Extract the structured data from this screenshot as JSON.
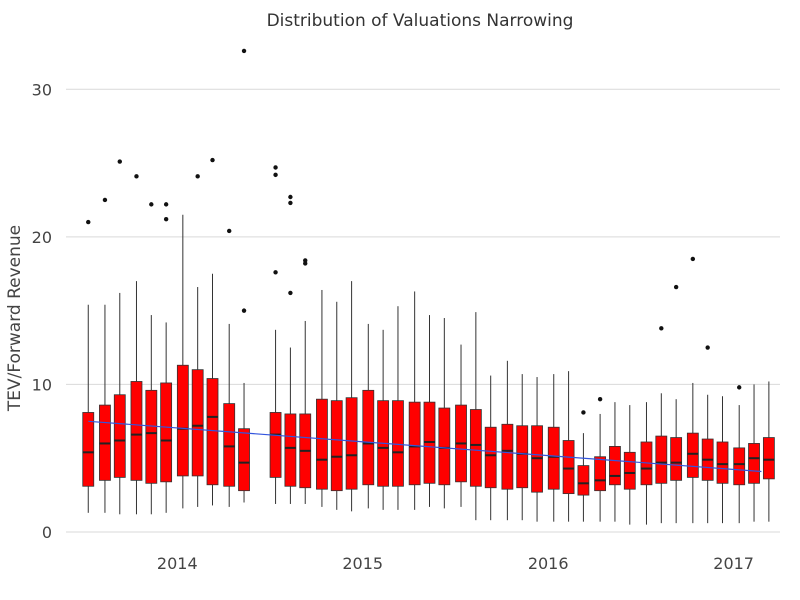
{
  "chart_data": {
    "type": "boxplot",
    "title": "Distribution of Valuations Narrowing",
    "xlabel": "",
    "ylabel": "TEV/Forward Revenue",
    "ylim": [
      0,
      33
    ],
    "yticks": [
      0,
      10,
      20,
      30
    ],
    "xlim": [
      2013.4,
      2017.25
    ],
    "xticks": [
      2014,
      2015,
      2016,
      2017
    ],
    "grid": "horizontal",
    "colors": {
      "box_fill": "#ff0000",
      "box_stroke": "#333333",
      "trend": "#3355dd",
      "grid": "#d9d9d9",
      "text": "#444444"
    },
    "trend_line": {
      "start": {
        "x": 2013.52,
        "y": 7.5
      },
      "end": {
        "x": 2017.15,
        "y": 4.1
      }
    },
    "boxes": [
      {
        "x": 2013.52,
        "min": 1.3,
        "q1": 3.1,
        "median": 5.4,
        "q3": 8.1,
        "max": 15.4,
        "outliers": [
          21.0
        ]
      },
      {
        "x": 2013.61,
        "min": 1.3,
        "q1": 3.5,
        "median": 6.0,
        "q3": 8.6,
        "max": 15.4,
        "outliers": [
          22.5
        ]
      },
      {
        "x": 2013.69,
        "min": 1.2,
        "q1": 3.7,
        "median": 6.2,
        "q3": 9.3,
        "max": 16.2,
        "outliers": [
          25.1
        ]
      },
      {
        "x": 2013.78,
        "min": 1.2,
        "q1": 3.5,
        "median": 6.6,
        "q3": 10.2,
        "max": 17.0,
        "outliers": [
          24.1
        ]
      },
      {
        "x": 2013.86,
        "min": 1.2,
        "q1": 3.3,
        "median": 6.7,
        "q3": 9.6,
        "max": 14.7,
        "outliers": [
          22.2
        ]
      },
      {
        "x": 2013.94,
        "min": 1.3,
        "q1": 3.4,
        "median": 6.2,
        "q3": 10.1,
        "max": 14.2,
        "outliers": [
          22.2,
          21.2
        ]
      },
      {
        "x": 2014.03,
        "min": 1.6,
        "q1": 3.8,
        "median": 7.0,
        "q3": 11.3,
        "max": 21.5,
        "outliers": []
      },
      {
        "x": 2014.11,
        "min": 1.7,
        "q1": 3.8,
        "median": 7.2,
        "q3": 11.0,
        "max": 16.6,
        "outliers": [
          24.1
        ]
      },
      {
        "x": 2014.19,
        "min": 1.8,
        "q1": 3.2,
        "median": 7.8,
        "q3": 10.4,
        "max": 17.5,
        "outliers": [
          25.2
        ]
      },
      {
        "x": 2014.28,
        "min": 1.7,
        "q1": 3.1,
        "median": 5.8,
        "q3": 8.7,
        "max": 14.1,
        "outliers": [
          20.4
        ]
      },
      {
        "x": 2014.36,
        "min": 2.0,
        "q1": 2.8,
        "median": 4.7,
        "q3": 7.0,
        "max": 10.1,
        "outliers": [
          32.6,
          15.0
        ]
      },
      {
        "x": 2014.53,
        "min": 1.9,
        "q1": 3.7,
        "median": 6.6,
        "q3": 8.1,
        "max": 13.7,
        "outliers": [
          24.7,
          24.2,
          17.6
        ]
      },
      {
        "x": 2014.61,
        "min": 1.9,
        "q1": 3.1,
        "median": 5.7,
        "q3": 8.0,
        "max": 12.5,
        "outliers": [
          22.7,
          22.3,
          16.2
        ]
      },
      {
        "x": 2014.69,
        "min": 1.9,
        "q1": 3.0,
        "median": 5.5,
        "q3": 8.0,
        "max": 14.3,
        "outliers": [
          18.4,
          18.2
        ]
      },
      {
        "x": 2014.78,
        "min": 1.7,
        "q1": 2.9,
        "median": 4.9,
        "q3": 9.0,
        "max": 16.4,
        "outliers": []
      },
      {
        "x": 2014.86,
        "min": 1.5,
        "q1": 2.8,
        "median": 5.1,
        "q3": 8.9,
        "max": 15.6,
        "outliers": []
      },
      {
        "x": 2014.94,
        "min": 1.4,
        "q1": 2.9,
        "median": 5.2,
        "q3": 9.1,
        "max": 17.0,
        "outliers": []
      },
      {
        "x": 2015.03,
        "min": 1.6,
        "q1": 3.2,
        "median": 6.0,
        "q3": 9.6,
        "max": 14.1,
        "outliers": []
      },
      {
        "x": 2015.11,
        "min": 1.5,
        "q1": 3.1,
        "median": 5.7,
        "q3": 8.9,
        "max": 13.7,
        "outliers": []
      },
      {
        "x": 2015.19,
        "min": 1.5,
        "q1": 3.1,
        "median": 5.4,
        "q3": 8.9,
        "max": 15.3,
        "outliers": []
      },
      {
        "x": 2015.28,
        "min": 1.5,
        "q1": 3.2,
        "median": 5.8,
        "q3": 8.8,
        "max": 16.3,
        "outliers": []
      },
      {
        "x": 2015.36,
        "min": 1.7,
        "q1": 3.3,
        "median": 6.1,
        "q3": 8.8,
        "max": 14.7,
        "outliers": []
      },
      {
        "x": 2015.44,
        "min": 1.6,
        "q1": 3.2,
        "median": 5.7,
        "q3": 8.4,
        "max": 14.5,
        "outliers": []
      },
      {
        "x": 2015.53,
        "min": 1.7,
        "q1": 3.4,
        "median": 6.0,
        "q3": 8.6,
        "max": 12.7,
        "outliers": []
      },
      {
        "x": 2015.61,
        "min": 0.8,
        "q1": 3.1,
        "median": 5.9,
        "q3": 8.3,
        "max": 14.9,
        "outliers": []
      },
      {
        "x": 2015.69,
        "min": 0.8,
        "q1": 3.0,
        "median": 5.2,
        "q3": 7.1,
        "max": 10.6,
        "outliers": []
      },
      {
        "x": 2015.78,
        "min": 0.8,
        "q1": 2.9,
        "median": 5.5,
        "q3": 7.3,
        "max": 11.6,
        "outliers": []
      },
      {
        "x": 2015.86,
        "min": 0.8,
        "q1": 3.0,
        "median": 5.3,
        "q3": 7.2,
        "max": 10.7,
        "outliers": []
      },
      {
        "x": 2015.94,
        "min": 0.7,
        "q1": 2.7,
        "median": 5.0,
        "q3": 7.2,
        "max": 10.5,
        "outliers": []
      },
      {
        "x": 2016.03,
        "min": 0.7,
        "q1": 2.9,
        "median": 5.1,
        "q3": 7.1,
        "max": 10.7,
        "outliers": []
      },
      {
        "x": 2016.11,
        "min": 0.7,
        "q1": 2.6,
        "median": 4.3,
        "q3": 6.2,
        "max": 10.9,
        "outliers": []
      },
      {
        "x": 2016.19,
        "min": 0.7,
        "q1": 2.5,
        "median": 3.3,
        "q3": 4.5,
        "max": 6.7,
        "outliers": [
          8.1
        ]
      },
      {
        "x": 2016.28,
        "min": 0.7,
        "q1": 2.8,
        "median": 3.5,
        "q3": 5.1,
        "max": 8.0,
        "outliers": [
          9.0
        ]
      },
      {
        "x": 2016.36,
        "min": 0.7,
        "q1": 3.2,
        "median": 3.8,
        "q3": 5.8,
        "max": 8.8,
        "outliers": []
      },
      {
        "x": 2016.44,
        "min": 0.5,
        "q1": 2.9,
        "median": 4.0,
        "q3": 5.4,
        "max": 8.6,
        "outliers": []
      },
      {
        "x": 2016.53,
        "min": 0.5,
        "q1": 3.2,
        "median": 4.3,
        "q3": 6.1,
        "max": 8.8,
        "outliers": []
      },
      {
        "x": 2016.61,
        "min": 0.6,
        "q1": 3.3,
        "median": 4.7,
        "q3": 6.5,
        "max": 9.4,
        "outliers": [
          13.8
        ]
      },
      {
        "x": 2016.69,
        "min": 0.6,
        "q1": 3.5,
        "median": 4.7,
        "q3": 6.4,
        "max": 9.0,
        "outliers": [
          16.6
        ]
      },
      {
        "x": 2016.78,
        "min": 0.6,
        "q1": 3.7,
        "median": 5.3,
        "q3": 6.7,
        "max": 10.1,
        "outliers": [
          18.5
        ]
      },
      {
        "x": 2016.86,
        "min": 0.6,
        "q1": 3.5,
        "median": 4.9,
        "q3": 6.3,
        "max": 9.3,
        "outliers": [
          12.5
        ]
      },
      {
        "x": 2016.94,
        "min": 0.6,
        "q1": 3.3,
        "median": 4.6,
        "q3": 6.1,
        "max": 9.2,
        "outliers": []
      },
      {
        "x": 2017.03,
        "min": 0.6,
        "q1": 3.2,
        "median": 4.6,
        "q3": 5.7,
        "max": 8.6,
        "outliers": [
          9.8
        ]
      },
      {
        "x": 2017.11,
        "min": 0.7,
        "q1": 3.3,
        "median": 5.0,
        "q3": 6.0,
        "max": 10.0,
        "outliers": []
      },
      {
        "x": 2017.19,
        "min": 0.7,
        "q1": 3.6,
        "median": 4.9,
        "q3": 6.4,
        "max": 10.2,
        "outliers": []
      }
    ]
  }
}
